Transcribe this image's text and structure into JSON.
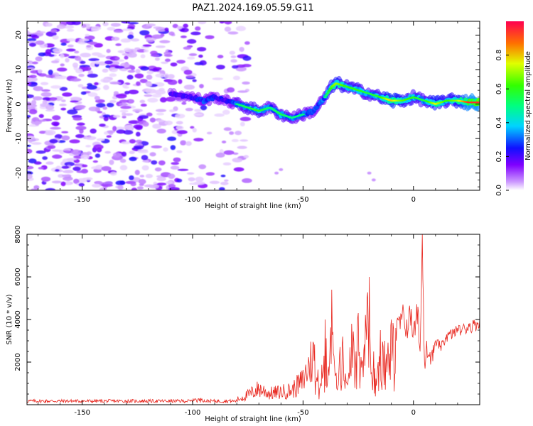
{
  "figure_title": "PAZ1.2024.169.05.59.G11",
  "chart_data": [
    {
      "type": "heatmap",
      "xlabel": "Height of straight line (km)",
      "ylabel": "Frequency (Hz)",
      "xlim": [
        -175,
        30
      ],
      "ylim": [
        -25,
        24
      ],
      "xticks": [
        -150,
        -100,
        -50,
        0
      ],
      "yticks": [
        -20,
        -10,
        0,
        10,
        20
      ],
      "xtick_labels": [
        "-150",
        "-100",
        "-50",
        "0"
      ],
      "ytick_labels": [
        "-20",
        "-10",
        "0",
        "10",
        "20"
      ],
      "colorbar": {
        "label": "Normalized spectral amplitude",
        "range": [
          0,
          1
        ],
        "ticks": [
          0.0,
          0.2,
          0.4,
          0.6,
          0.8
        ],
        "tick_labels": [
          "0.0",
          "0.2",
          "0.4",
          "0.6",
          "0.8"
        ],
        "colormap": "gist_rainbow_r"
      },
      "ridge": {
        "x": [
          -110,
          -100,
          -95,
          -90,
          -85,
          -80,
          -75,
          -70,
          -65,
          -60,
          -55,
          -50,
          -45,
          -40,
          -37,
          -35,
          -30,
          -25,
          -20,
          -15,
          -10,
          -5,
          0,
          5,
          10,
          15,
          20,
          25,
          30
        ],
        "y": [
          3,
          2,
          1,
          2,
          1,
          0,
          -1,
          -2,
          -1,
          -3,
          -4,
          -3,
          -2,
          2,
          5,
          6,
          5,
          4,
          3,
          2,
          1,
          1,
          2,
          1,
          0,
          1,
          1,
          0.5,
          0.5
        ],
        "amplitude": [
          0.3,
          0.35,
          0.45,
          0.4,
          0.35,
          0.5,
          0.55,
          0.6,
          0.5,
          0.55,
          0.5,
          0.5,
          0.45,
          0.5,
          0.65,
          0.7,
          0.6,
          0.6,
          0.55,
          0.6,
          0.8,
          0.65,
          0.6,
          0.55,
          0.75,
          0.6,
          0.7,
          0.95,
          0.95
        ]
      },
      "background_noise_x_range": [
        -175,
        -80
      ]
    },
    {
      "type": "line",
      "xlabel": "Height of straight line (km)",
      "ylabel": "SNR (10 * v/v)",
      "xlim": [
        -175,
        30
      ],
      "ylim": [
        0,
        8000
      ],
      "xticks": [
        -150,
        -100,
        -50,
        0
      ],
      "yticks": [
        2000,
        4000,
        6000,
        8000
      ],
      "xtick_labels": [
        "-150",
        "-100",
        "-50",
        "0"
      ],
      "ytick_labels": [
        "2000",
        "4000",
        "6000",
        "8000"
      ],
      "series": [
        {
          "color": "#e8261e",
          "x": [
            -175,
            -100,
            -97,
            -90,
            -80,
            -75,
            -70,
            -65,
            -60,
            -55,
            -50,
            -47,
            -45,
            -42,
            -40,
            -38,
            -37,
            -35,
            -32,
            -30,
            -28,
            -26,
            -25,
            -23,
            -21,
            -20,
            -19,
            -18,
            -16,
            -15,
            -13,
            -10,
            -8,
            -5,
            -3,
            -1,
            0,
            2,
            3,
            4,
            5,
            6,
            8,
            10,
            12,
            15,
            18,
            20,
            23,
            25,
            28,
            30
          ],
          "y": [
            150,
            150,
            350,
            200,
            300,
            600,
            1000,
            700,
            800,
            900,
            1500,
            2500,
            3200,
            1000,
            4000,
            2000,
            5400,
            1500,
            3200,
            1000,
            3800,
            2500,
            4300,
            2000,
            5000,
            6000,
            1500,
            2500,
            2000,
            3500,
            3000,
            4000,
            3600,
            4400,
            4000,
            4500,
            3500,
            4600,
            2500,
            8000,
            2000,
            3000,
            2200,
            3000,
            2700,
            3300,
            3500,
            3600,
            3700,
            3800,
            3900,
            4000
          ],
          "noise_level": 180
        }
      ]
    }
  ]
}
